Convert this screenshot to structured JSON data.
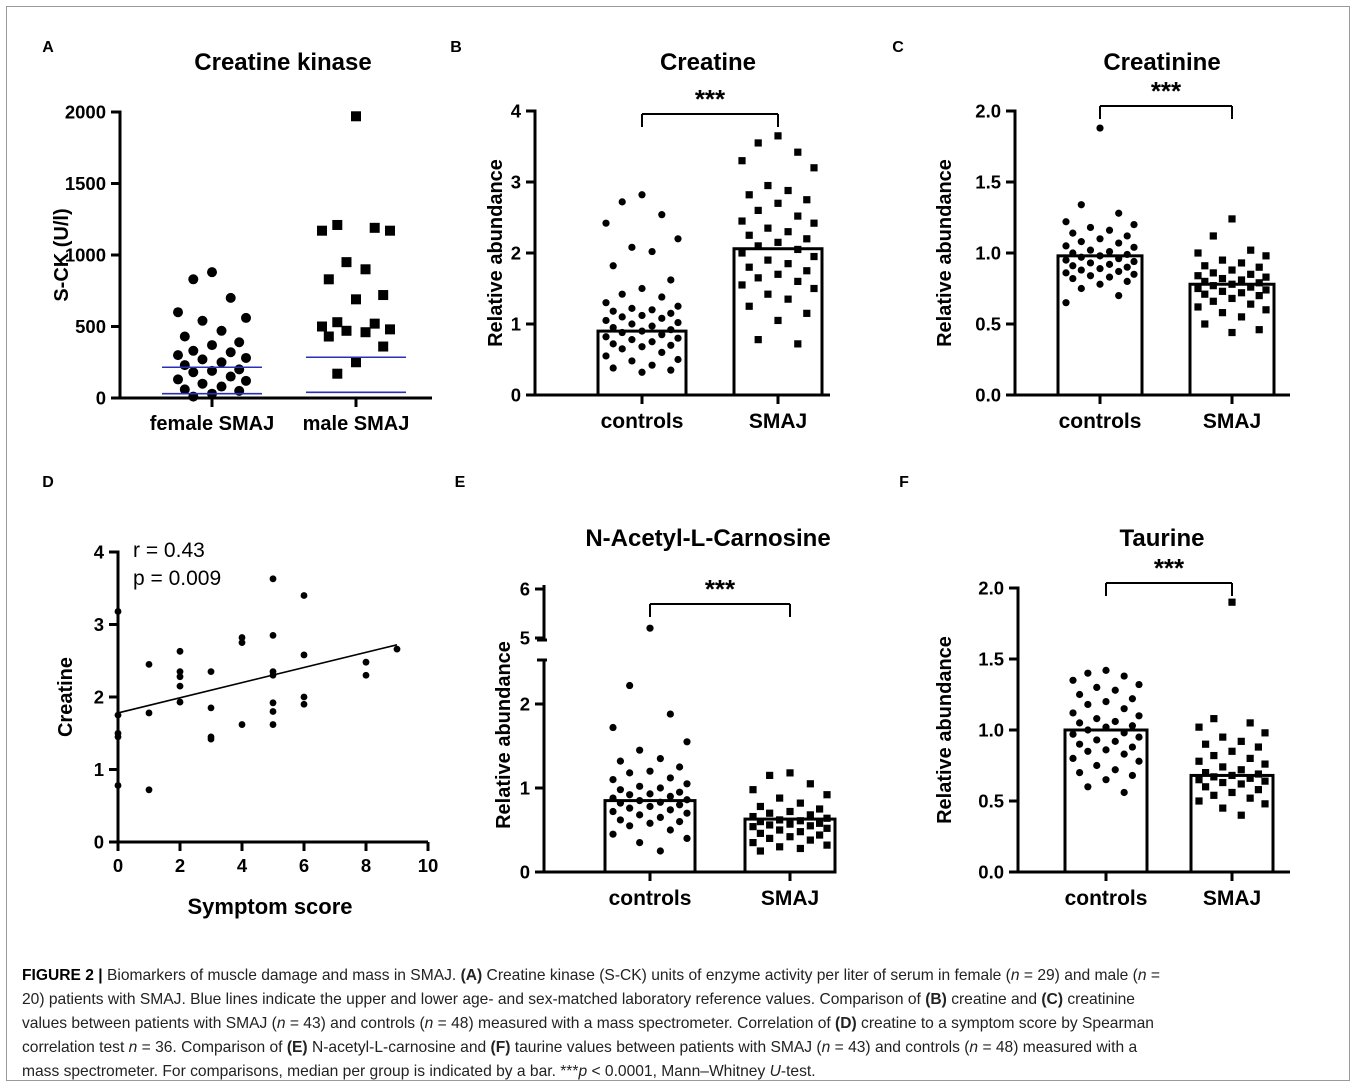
{
  "colors": {
    "ink": "#000000",
    "reference_line": "#2b2fb8",
    "caption_text": "#222222"
  },
  "chart_data": [
    {
      "panel": "A",
      "type": "scatter",
      "title": "Creatine kinase",
      "xlabel": "",
      "ylabel": "S-CK (U/l)",
      "categories": [
        "female SMAJ",
        "male SMAJ"
      ],
      "ylim": [
        0,
        2000
      ],
      "yticks": [
        "0",
        "500",
        "1000",
        "1500",
        "2000"
      ],
      "series": [
        {
          "category": "female SMAJ",
          "marker": "circle",
          "values": [
            880,
            830,
            700,
            600,
            560,
            540,
            470,
            430,
            390,
            370,
            330,
            320,
            300,
            280,
            270,
            250,
            230,
            200,
            190,
            180,
            150,
            130,
            120,
            100,
            80,
            60,
            50,
            30,
            10
          ]
        },
        {
          "category": "male SMAJ",
          "marker": "square",
          "values": [
            1970,
            1210,
            1190,
            1170,
            1170,
            950,
            900,
            830,
            720,
            690,
            530,
            520,
            500,
            480,
            470,
            460,
            430,
            360,
            250,
            170
          ]
        }
      ],
      "reference_lines": [
        {
          "category": "female SMAJ",
          "values": [
            215,
            30
          ]
        },
        {
          "category": "male SMAJ",
          "values": [
            285,
            40
          ]
        }
      ]
    },
    {
      "panel": "B",
      "type": "bar",
      "title": "Creatine",
      "ylabel": "Relative abundance",
      "categories": [
        "controls",
        "SMAJ"
      ],
      "values": [
        0.9,
        2.06
      ],
      "ylim": [
        0,
        4
      ],
      "yticks": [
        "0",
        "1",
        "2",
        "3",
        "4"
      ],
      "significance": "***",
      "points": [
        [
          2.82,
          2.72,
          2.54,
          2.42,
          2.2,
          2.08,
          2.02,
          1.82,
          1.62,
          1.5,
          1.42,
          1.38,
          1.3,
          1.25,
          1.22,
          1.2,
          1.18,
          1.15,
          1.12,
          1.1,
          1.08,
          1.05,
          1.02,
          1.0,
          0.97,
          0.95,
          0.92,
          0.9,
          0.88,
          0.85,
          0.82,
          0.8,
          0.78,
          0.75,
          0.72,
          0.7,
          0.68,
          0.65,
          0.6,
          0.55,
          0.5,
          0.48,
          0.42,
          0.38,
          0.35,
          0.32
        ],
        [
          3.65,
          3.55,
          3.42,
          3.3,
          3.2,
          2.95,
          2.88,
          2.82,
          2.75,
          2.7,
          2.6,
          2.52,
          2.45,
          2.42,
          2.35,
          2.3,
          2.25,
          2.2,
          2.15,
          2.1,
          2.05,
          2.0,
          1.95,
          1.9,
          1.85,
          1.8,
          1.75,
          1.7,
          1.65,
          1.6,
          1.55,
          1.5,
          1.42,
          1.35,
          1.25,
          1.15,
          1.05,
          0.78,
          0.72
        ]
      ]
    },
    {
      "panel": "C",
      "type": "bar",
      "title": "Creatinine",
      "ylabel": "Relative abundance",
      "categories": [
        "controls",
        "SMAJ"
      ],
      "values": [
        0.98,
        0.78
      ],
      "ylim": [
        0,
        2.0
      ],
      "yticks": [
        "0.0",
        "0.5",
        "1.0",
        "1.5",
        "2.0"
      ],
      "significance": "***",
      "points": [
        [
          1.88,
          1.34,
          1.28,
          1.22,
          1.2,
          1.18,
          1.16,
          1.14,
          1.12,
          1.1,
          1.08,
          1.07,
          1.05,
          1.04,
          1.02,
          1.01,
          1.0,
          0.99,
          0.98,
          0.97,
          0.96,
          0.95,
          0.94,
          0.93,
          0.92,
          0.91,
          0.9,
          0.89,
          0.88,
          0.87,
          0.86,
          0.85,
          0.84,
          0.83,
          0.82,
          0.8,
          0.78,
          0.75,
          0.7,
          0.65
        ],
        [
          1.24,
          1.12,
          1.02,
          1.0,
          0.98,
          0.95,
          0.93,
          0.91,
          0.9,
          0.88,
          0.86,
          0.85,
          0.84,
          0.83,
          0.82,
          0.81,
          0.8,
          0.79,
          0.78,
          0.77,
          0.76,
          0.75,
          0.74,
          0.73,
          0.72,
          0.71,
          0.7,
          0.68,
          0.66,
          0.64,
          0.62,
          0.6,
          0.58,
          0.55,
          0.5,
          0.46,
          0.44
        ]
      ]
    },
    {
      "panel": "D",
      "type": "scatter",
      "title": "",
      "xlabel": "Symptom score",
      "ylabel": "Creatine",
      "xlim": [
        0,
        10
      ],
      "ylim": [
        0,
        4
      ],
      "xticks": [
        "0",
        "2",
        "4",
        "6",
        "8",
        "10"
      ],
      "yticks": [
        "0",
        "1",
        "2",
        "3",
        "4"
      ],
      "annotations": [
        "r = 0.43",
        "p = 0.009"
      ],
      "points": [
        [
          0,
          3.18
        ],
        [
          0,
          1.75
        ],
        [
          0,
          1.5
        ],
        [
          0,
          1.45
        ],
        [
          0,
          0.78
        ],
        [
          1,
          2.45
        ],
        [
          1,
          1.78
        ],
        [
          1,
          0.72
        ],
        [
          2,
          2.63
        ],
        [
          2,
          2.35
        ],
        [
          2,
          2.28
        ],
        [
          2,
          2.15
        ],
        [
          2,
          1.93
        ],
        [
          3,
          2.35
        ],
        [
          3,
          1.85
        ],
        [
          3,
          1.45
        ],
        [
          3,
          1.42
        ],
        [
          4,
          2.82
        ],
        [
          4,
          2.75
        ],
        [
          4,
          1.62
        ],
        [
          5,
          3.63
        ],
        [
          5,
          2.85
        ],
        [
          5,
          2.35
        ],
        [
          5,
          2.3
        ],
        [
          5,
          1.92
        ],
        [
          5,
          1.8
        ],
        [
          5,
          1.62
        ],
        [
          6,
          3.4
        ],
        [
          6,
          2.58
        ],
        [
          6,
          2.0
        ],
        [
          6,
          1.9
        ],
        [
          8,
          2.48
        ],
        [
          8,
          2.3
        ],
        [
          9,
          2.66
        ]
      ],
      "regression": {
        "x": [
          0,
          9
        ],
        "y": [
          1.78,
          2.72
        ]
      }
    },
    {
      "panel": "E",
      "type": "bar",
      "title": "N-Acetyl-L-Carnosine",
      "ylabel": "Relative abundance",
      "categories": [
        "controls",
        "SMAJ"
      ],
      "values": [
        0.85,
        0.63
      ],
      "ylim": [
        0,
        6
      ],
      "axis_break": [
        2.6,
        4.8
      ],
      "yticks": [
        "0",
        "1",
        "2",
        "5",
        "6"
      ],
      "significance": "***",
      "points": [
        [
          5.2,
          2.22,
          1.88,
          1.72,
          1.55,
          1.45,
          1.35,
          1.32,
          1.25,
          1.2,
          1.18,
          1.12,
          1.1,
          1.05,
          1.02,
          1.0,
          0.98,
          0.95,
          0.93,
          0.92,
          0.9,
          0.88,
          0.86,
          0.85,
          0.83,
          0.82,
          0.8,
          0.78,
          0.76,
          0.74,
          0.72,
          0.7,
          0.68,
          0.65,
          0.62,
          0.6,
          0.58,
          0.55,
          0.5,
          0.45,
          0.4,
          0.35,
          0.25
        ],
        [
          1.18,
          1.15,
          1.05,
          0.98,
          0.92,
          0.88,
          0.82,
          0.78,
          0.75,
          0.72,
          0.7,
          0.68,
          0.66,
          0.64,
          0.62,
          0.61,
          0.6,
          0.58,
          0.57,
          0.56,
          0.55,
          0.54,
          0.52,
          0.5,
          0.48,
          0.46,
          0.44,
          0.42,
          0.4,
          0.38,
          0.35,
          0.32,
          0.3,
          0.28,
          0.25
        ]
      ]
    },
    {
      "panel": "F",
      "type": "bar",
      "title": "Taurine",
      "ylabel": "Relative abundance",
      "categories": [
        "controls",
        "SMAJ"
      ],
      "values": [
        1.0,
        0.68
      ],
      "ylim": [
        0,
        2.0
      ],
      "yticks": [
        "0.0",
        "0.5",
        "1.0",
        "1.5",
        "2.0"
      ],
      "significance": "***",
      "points": [
        [
          1.42,
          1.4,
          1.38,
          1.35,
          1.32,
          1.3,
          1.28,
          1.25,
          1.22,
          1.2,
          1.18,
          1.15,
          1.12,
          1.1,
          1.08,
          1.06,
          1.05,
          1.03,
          1.02,
          1.0,
          0.98,
          0.97,
          0.95,
          0.93,
          0.92,
          0.9,
          0.88,
          0.86,
          0.85,
          0.83,
          0.8,
          0.78,
          0.75,
          0.72,
          0.7,
          0.68,
          0.65,
          0.6,
          0.56
        ],
        [
          1.9,
          1.08,
          1.05,
          1.02,
          0.98,
          0.95,
          0.92,
          0.9,
          0.88,
          0.85,
          0.82,
          0.8,
          0.78,
          0.76,
          0.74,
          0.72,
          0.7,
          0.69,
          0.68,
          0.67,
          0.66,
          0.65,
          0.64,
          0.63,
          0.62,
          0.6,
          0.58,
          0.56,
          0.54,
          0.52,
          0.5,
          0.48,
          0.45,
          0.4
        ]
      ]
    }
  ],
  "panel_letters": [
    "A",
    "B",
    "C",
    "D",
    "E",
    "F"
  ],
  "caption": {
    "figure_label": "FIGURE 2 |",
    "lines": [
      [
        {
          "t": " Biomarkers of muscle damage and mass in SMAJ. "
        },
        {
          "t": "(A)",
          "b": true
        },
        {
          "t": " Creatine kinase (S-CK) units of enzyme activity per liter of serum in female ("
        },
        {
          "t": "n",
          "i": true
        },
        {
          "t": " = 29) and male ("
        },
        {
          "t": "n",
          "i": true
        },
        {
          "t": " ="
        }
      ],
      [
        {
          "t": "20) patients with SMAJ. Blue lines indicate the upper and lower age- and sex-matched laboratory reference values. Comparison of "
        },
        {
          "t": "(B)",
          "b": true
        },
        {
          "t": " creatine and "
        },
        {
          "t": "(C)",
          "b": true
        },
        {
          "t": " creatinine"
        }
      ],
      [
        {
          "t": "values between patients with SMAJ ("
        },
        {
          "t": "n",
          "i": true
        },
        {
          "t": " = 43) and controls ("
        },
        {
          "t": "n",
          "i": true
        },
        {
          "t": " = 48) measured with a mass spectrometer. Correlation of "
        },
        {
          "t": "(D)",
          "b": true
        },
        {
          "t": " creatine to a symptom score by Spearman"
        }
      ],
      [
        {
          "t": "correlation test "
        },
        {
          "t": "n",
          "i": true
        },
        {
          "t": " = 36. Comparison of "
        },
        {
          "t": "(E)",
          "b": true
        },
        {
          "t": " N-acetyl-L-carnosine and "
        },
        {
          "t": "(F)",
          "b": true
        },
        {
          "t": " taurine values between patients with SMAJ ("
        },
        {
          "t": "n",
          "i": true
        },
        {
          "t": " = 43) and controls ("
        },
        {
          "t": "n",
          "i": true
        },
        {
          "t": " = 48) measured with a"
        }
      ],
      [
        {
          "t": "mass spectrometer. For comparisons, median per group is indicated by a bar. ***"
        },
        {
          "t": "p",
          "i": true
        },
        {
          "t": " < 0.0001, Mann–Whitney "
        },
        {
          "t": "U",
          "i": true
        },
        {
          "t": "-test."
        }
      ]
    ]
  }
}
